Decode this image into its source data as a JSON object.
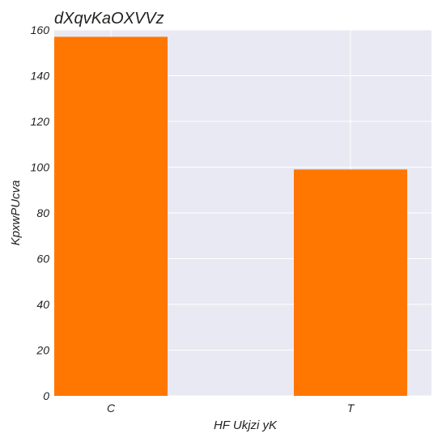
{
  "chart_data": {
    "type": "bar",
    "title": "dXqvKaOXVVz",
    "xlabel": "HF Ukjzi yK",
    "ylabel": "KpxwPUcva",
    "categories": [
      "C",
      "T"
    ],
    "values": [
      157,
      99
    ],
    "ylim": [
      0,
      160
    ],
    "yticks": [
      0,
      20,
      40,
      60,
      80,
      100,
      120,
      140,
      160
    ],
    "grid": true,
    "colors": {
      "bar": "#ff7700",
      "plot_background": "#e8e9f2",
      "grid": "#ffffff"
    }
  }
}
